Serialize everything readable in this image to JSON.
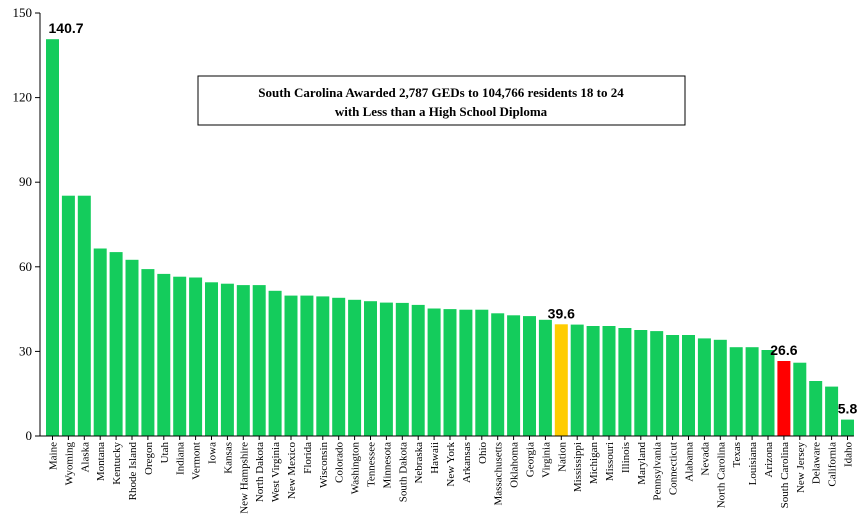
{
  "chart_data": {
    "type": "bar",
    "title": "South Carolina Awarded 2,787 GEDs to 104,766 residents 18 to 24 with Less than a High School Diploma",
    "title_lines": [
      "South Carolina Awarded 2,787 GEDs to 104,766 residents 18 to 24",
      "with Less than a High School Diploma"
    ],
    "xlabel": "",
    "ylabel": "",
    "ylim": [
      0,
      150
    ],
    "yticks": [
      0,
      30,
      60,
      90,
      120,
      150
    ],
    "grid": false,
    "legend": "none",
    "categories": [
      "Maine",
      "Wyoming",
      "Alaska",
      "Montana",
      "Kentucky",
      "Rhode Island",
      "Oregon",
      "Utah",
      "Indiana",
      "Vermont",
      "Iowa",
      "Kansas",
      "New Hampshire",
      "North Dakota",
      "West Virginia",
      "New Mexico",
      "Florida",
      "Wisconsin",
      "Colorado",
      "Washington",
      "Tennessee",
      "Minnesota",
      "South Dakota",
      "Nebraska",
      "Hawaii",
      "New York",
      "Arkansas",
      "Ohio",
      "Massachusetts",
      "Oklahoma",
      "Georgia",
      "Virginia",
      "Nation",
      "Mississippi",
      "Michigan",
      "Missouri",
      "Illinois",
      "Maryland",
      "Pennsylvania",
      "Connecticut",
      "Alabama",
      "Nevada",
      "North Carolina",
      "Texas",
      "Louisiana",
      "Arizona",
      "South Carolina",
      "New Jersey",
      "Delaware",
      "California",
      "Idaho"
    ],
    "values": [
      140.7,
      85.2,
      85.2,
      66.5,
      65.2,
      62.5,
      59.2,
      57.5,
      56.5,
      56.2,
      54.5,
      54.0,
      53.5,
      53.5,
      51.5,
      49.8,
      49.8,
      49.5,
      49.0,
      48.3,
      47.8,
      47.3,
      47.2,
      46.5,
      45.2,
      45.0,
      44.8,
      44.8,
      43.5,
      42.8,
      42.5,
      41.2,
      39.6,
      39.5,
      39.0,
      39.0,
      38.3,
      37.6,
      37.2,
      35.8,
      35.8,
      34.6,
      34.1,
      31.5,
      31.5,
      30.5,
      26.6,
      26.0,
      19.5,
      17.5,
      5.8
    ],
    "colors": {
      "default": "#14cc5c",
      "Nation": "#ffcc00",
      "South Carolina": "#ff0000"
    },
    "data_labels": [
      {
        "category": "Maine",
        "text": "140.7"
      },
      {
        "category": "Nation",
        "text": "39.6"
      },
      {
        "category": "South Carolina",
        "text": "26.6"
      },
      {
        "category": "Idaho",
        "text": "5.8"
      }
    ]
  }
}
